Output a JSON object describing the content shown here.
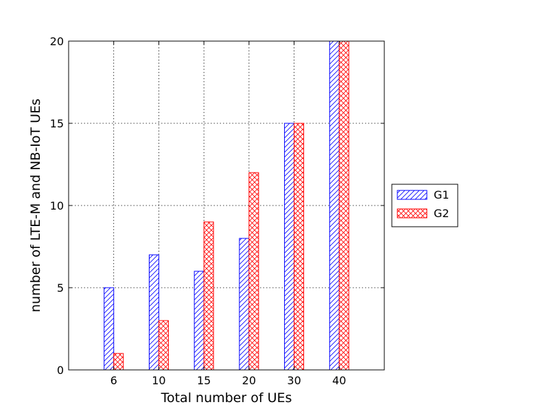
{
  "chart_data": {
    "type": "bar",
    "title": "",
    "xlabel": "Total number of UEs",
    "ylabel": "number of LTE-M and NB-IoT UEs",
    "categories": [
      "6",
      "10",
      "15",
      "20",
      "30",
      "40"
    ],
    "series": [
      {
        "name": "G1",
        "values": [
          5,
          7,
          6,
          8,
          15,
          20
        ],
        "color": "#0000ff",
        "pattern": "diagonal-hatch"
      },
      {
        "name": "G2",
        "values": [
          1,
          3,
          9,
          12,
          15,
          20
        ],
        "color": "#ff0000",
        "pattern": "cross-hatch"
      }
    ],
    "ylim": [
      0,
      20
    ],
    "yticks": [
      0,
      5,
      10,
      15,
      20
    ],
    "grid": true,
    "legend_position": "right, outside plot area"
  }
}
